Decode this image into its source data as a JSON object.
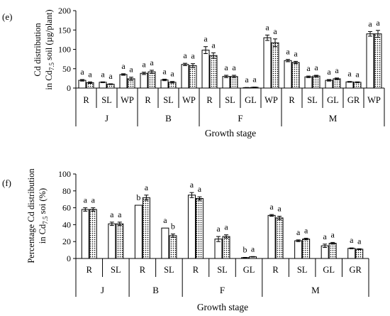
{
  "chart_data": [
    {
      "panel": "(e)",
      "type": "bar",
      "ylabel_line1": "Cd distribution",
      "ylabel_line2_pre": "in Cd",
      "ylabel_line2_sub": "7.5",
      "ylabel_line2_post": " soil (µg/plant)",
      "xlabel": "Growth stage",
      "ylim": [
        0,
        200
      ],
      "yticks": [
        "0",
        "50",
        "100",
        "150",
        "200"
      ],
      "ytick_values": [
        0,
        50,
        100,
        150,
        200
      ],
      "groups": [
        {
          "label": "J",
          "categories": [
            "R",
            "SL",
            "WP"
          ],
          "values": [
            [
              20,
              14
            ],
            [
              15,
              10
            ],
            [
              35,
              24
            ]
          ],
          "errors": [
            [
              2,
              2
            ],
            [
              1,
              1
            ],
            [
              2,
              4
            ]
          ],
          "letters": [
            [
              "a",
              "a"
            ],
            [
              "a",
              "a"
            ],
            [
              "a",
              "a"
            ]
          ]
        },
        {
          "label": "B",
          "categories": [
            "R",
            "SL",
            "WP"
          ],
          "values": [
            [
              38,
              42
            ],
            [
              21,
              15
            ],
            [
              61,
              58
            ]
          ],
          "errors": [
            [
              3,
              4
            ],
            [
              2,
              2
            ],
            [
              3,
              5
            ]
          ],
          "letters": [
            [
              "a",
              "a"
            ],
            [
              "a",
              "a"
            ],
            [
              "a",
              "a"
            ]
          ]
        },
        {
          "label": "F",
          "categories": [
            "R",
            "SL",
            "GL",
            "WP"
          ],
          "values": [
            [
              98,
              84
            ],
            [
              30,
              30
            ],
            [
              1,
              2
            ],
            [
              130,
              117
            ]
          ],
          "errors": [
            [
              9,
              7
            ],
            [
              3,
              3
            ],
            [
              0.5,
              0.5
            ],
            [
              7,
              10
            ]
          ],
          "letters": [
            [
              "a",
              "a"
            ],
            [
              "a",
              "a"
            ],
            [
              "a",
              "a"
            ],
            [
              "a",
              "a"
            ]
          ]
        },
        {
          "label": "M",
          "categories": [
            "R",
            "SL",
            "GL",
            "GR",
            "WP"
          ],
          "values": [
            [
              71,
              66
            ],
            [
              29,
              31
            ],
            [
              20,
              24
            ],
            [
              16,
              15
            ],
            [
              140,
              140
            ]
          ],
          "errors": [
            [
              3,
              3
            ],
            [
              2,
              2
            ],
            [
              2,
              2
            ],
            [
              1,
              1
            ],
            [
              6,
              9
            ]
          ],
          "letters": [
            [
              "a",
              "a"
            ],
            [
              "a",
              "a"
            ],
            [
              "a",
              "a"
            ],
            [
              "a",
              "a"
            ],
            [
              "a",
              "a"
            ]
          ]
        }
      ]
    },
    {
      "panel": "(f)",
      "type": "bar",
      "ylabel_line1": "Percentage Cd distribution",
      "ylabel_line2_pre": "in Cd",
      "ylabel_line2_sub": "7.5",
      "ylabel_line2_post": " soi (%)",
      "xlabel": "Growth stage",
      "ylim": [
        0,
        100
      ],
      "yticks": [
        "0",
        "20",
        "40",
        "60",
        "80",
        "100"
      ],
      "ytick_values": [
        0,
        20,
        40,
        60,
        80,
        100
      ],
      "groups": [
        {
          "label": "J",
          "categories": [
            "R",
            "SL"
          ],
          "values": [
            [
              58,
              58
            ],
            [
              41,
              41
            ]
          ],
          "errors": [
            [
              2,
              2
            ],
            [
              2,
              2
            ]
          ],
          "letters": [
            [
              "a",
              "a"
            ],
            [
              "a",
              "a"
            ]
          ]
        },
        {
          "label": "B",
          "categories": [
            "R",
            "SL"
          ],
          "values": [
            [
              63,
              72
            ],
            [
              36,
              27
            ]
          ],
          "errors": [
            [
              0,
              3
            ],
            [
              0,
              2
            ]
          ],
          "letters": [
            [
              "b",
              "a"
            ],
            [
              "a",
              "b"
            ]
          ]
        },
        {
          "label": "F",
          "categories": [
            "R",
            "SL",
            "GL"
          ],
          "values": [
            [
              75,
              71
            ],
            [
              23,
              26
            ],
            [
              1,
              2
            ]
          ],
          "errors": [
            [
              3,
              2
            ],
            [
              3,
              2
            ],
            [
              0.3,
              0.3
            ]
          ],
          "letters": [
            [
              "a",
              "a"
            ],
            [
              "a",
              "a"
            ],
            [
              "b",
              "a"
            ]
          ]
        },
        {
          "label": "M",
          "categories": [
            "R",
            "SL",
            "GL",
            "GR"
          ],
          "values": [
            [
              51,
              48
            ],
            [
              21,
              23
            ],
            [
              15,
              18
            ],
            [
              12,
              11
            ]
          ],
          "errors": [
            [
              1,
              2
            ],
            [
              1,
              1
            ],
            [
              2,
              1
            ],
            [
              0.5,
              0.5
            ]
          ],
          "letters": [
            [
              "a",
              "a"
            ],
            [
              "a",
              "a"
            ],
            [
              "a",
              "a"
            ],
            [
              "a",
              "a"
            ]
          ]
        }
      ]
    }
  ],
  "series_colors": {
    "series_1_fill": "#ffffff",
    "series_2_fill": "dots",
    "stroke": "#000000"
  }
}
